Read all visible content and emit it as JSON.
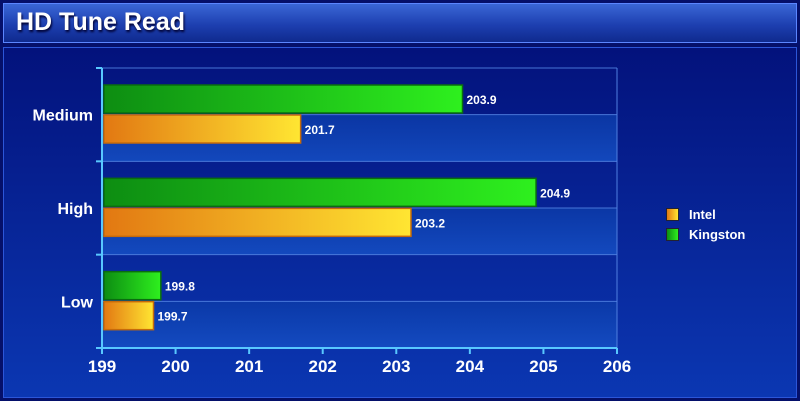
{
  "chart_data": {
    "type": "bar",
    "orientation": "horizontal",
    "title": "HD Tune Read",
    "categories": [
      "Medium",
      "High",
      "Low"
    ],
    "series": [
      {
        "name": "Kingston",
        "values": [
          203.9,
          204.9,
          199.8
        ],
        "color": "#2ecc1e"
      },
      {
        "name": "Intel",
        "values": [
          201.7,
          203.2,
          199.7
        ],
        "color": "#f7a81d"
      }
    ],
    "data_labels": [
      [
        "203.9",
        "204.9",
        "199.8"
      ],
      [
        "201.7",
        "203.2",
        "199.7"
      ]
    ],
    "x_ticks": [
      "199",
      "200",
      "201",
      "202",
      "203",
      "204",
      "205",
      "206"
    ],
    "xlim": [
      199,
      206
    ],
    "xlabel": "",
    "ylabel": "",
    "grid": true,
    "legend": {
      "position": "right",
      "entries": [
        "Intel",
        "Kingston"
      ]
    }
  },
  "colors": {
    "background": "#05106a",
    "kingston": "#2ecc1e",
    "intel": "#f7a81d",
    "axis": "#58c8ff"
  }
}
